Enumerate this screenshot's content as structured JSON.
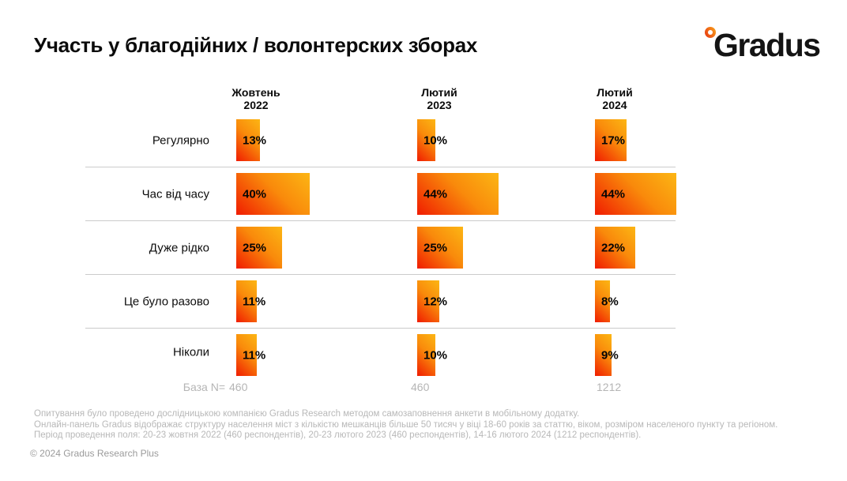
{
  "title": "Участь у благодійних / волонтерских зборах",
  "logo": {
    "text": "Gradus"
  },
  "chart_data": {
    "type": "bar",
    "orientation": "horizontal",
    "unit": "%",
    "title": "Участь у благодійних / волонтерских зборах",
    "categories": [
      "Регулярно",
      "Час від часу",
      "Дуже рідко",
      "Це було разово",
      "Ніколи"
    ],
    "series": [
      {
        "name": "Жовтень 2022",
        "values": [
          13,
          40,
          25,
          11,
          11
        ]
      },
      {
        "name": "Лютий 2023",
        "values": [
          10,
          44,
          25,
          12,
          10
        ]
      },
      {
        "name": "Лютий 2024",
        "values": [
          17,
          44,
          22,
          8,
          9
        ]
      }
    ],
    "column_headers": [
      {
        "line1": "Жовтень",
        "line2": "2022"
      },
      {
        "line1": "Лютий",
        "line2": "2023"
      },
      {
        "line1": "Лютий",
        "line2": "2024"
      }
    ],
    "base_label": "База N=",
    "base_values": [
      "460",
      "460",
      "1212"
    ],
    "bar_gradient": [
      "#f01c00",
      "#fcb614"
    ],
    "grid": "row-separators",
    "legend_position": "column-headers-top",
    "xlim": [
      0,
      44
    ]
  },
  "footnotes": [
    "Опитування було проведено дослідницькою компанією Gradus Research методом самозаповнення анкети в мобільному додатку.",
    "Онлайн-панель Gradus відображає структуру населення міст з кількістю мешканців більше 50 тисяч у віці 18-60 років за статтю, віком, розміром населеного пункту та регіоном.",
    "Період проведення поля: 20-23 жовтня 2022 (460 респондентів), 20-23 лютого 2023 (460 респондентів), 14-16 лютого 2024 (1212 респондентів)."
  ],
  "copyright": "© 2024 Gradus Research Plus"
}
